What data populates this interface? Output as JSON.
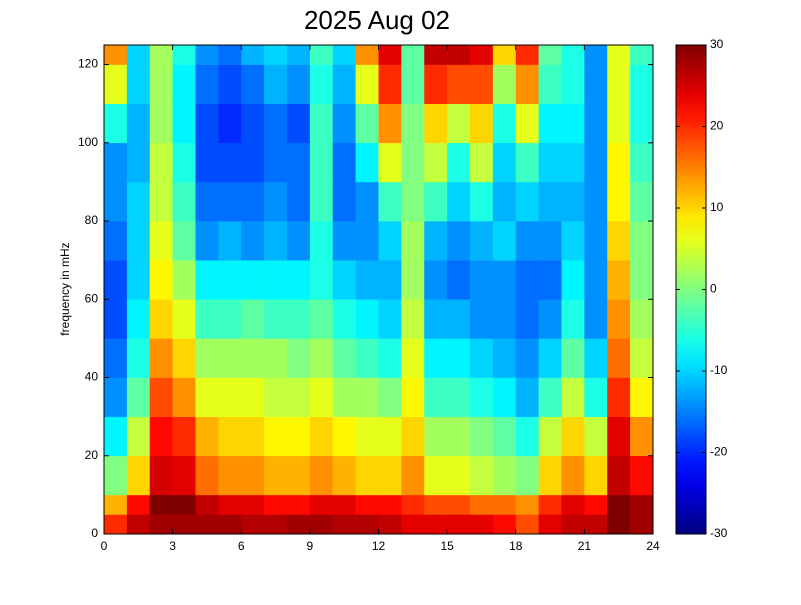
{
  "chart_data": {
    "type": "heatmap",
    "title": "2025 Aug 02",
    "ylabel": "frequency in mHz",
    "colormap": "jet",
    "x_edges": [
      0,
      1,
      2,
      3,
      4,
      5,
      6,
      7,
      8,
      9,
      10,
      11,
      12,
      13,
      14,
      15,
      16,
      17,
      18,
      19,
      20,
      21,
      22,
      23,
      24
    ],
    "y_edges": [
      0,
      5,
      10,
      20,
      30,
      40,
      50,
      60,
      70,
      80,
      90,
      100,
      110,
      120,
      125
    ],
    "values": [
      [
        20,
        26,
        28,
        28,
        28,
        28,
        27,
        27,
        28,
        28,
        27,
        27,
        26,
        24,
        24,
        24,
        24,
        22,
        18,
        24,
        26,
        26,
        30,
        28
      ],
      [
        12,
        22,
        30,
        30,
        26,
        24,
        24,
        22,
        22,
        24,
        24,
        22,
        22,
        20,
        18,
        18,
        16,
        16,
        14,
        20,
        24,
        22,
        30,
        28
      ],
      [
        0,
        10,
        25,
        24,
        16,
        14,
        14,
        12,
        12,
        14,
        12,
        10,
        10,
        14,
        6,
        6,
        4,
        2,
        0,
        10,
        14,
        10,
        26,
        22
      ],
      [
        -8,
        4,
        22,
        20,
        12,
        10,
        10,
        8,
        8,
        10,
        8,
        6,
        6,
        10,
        2,
        2,
        0,
        -2,
        -6,
        4,
        10,
        4,
        24,
        14
      ],
      [
        -14,
        -2,
        18,
        14,
        6,
        6,
        6,
        4,
        4,
        6,
        2,
        2,
        0,
        8,
        -4,
        -4,
        -6,
        -8,
        -12,
        -4,
        4,
        -6,
        20,
        8
      ],
      [
        -16,
        -6,
        14,
        10,
        2,
        2,
        2,
        2,
        0,
        2,
        -2,
        -4,
        -6,
        6,
        -8,
        -8,
        -10,
        -12,
        -14,
        -10,
        -2,
        -10,
        16,
        4
      ],
      [
        -18,
        -8,
        10,
        6,
        -4,
        -4,
        -2,
        -4,
        -4,
        -2,
        -6,
        -8,
        -10,
        4,
        -12,
        -12,
        -14,
        -14,
        -16,
        -14,
        -6,
        -14,
        14,
        2
      ],
      [
        -18,
        -10,
        8,
        2,
        -8,
        -8,
        -8,
        -8,
        -8,
        -6,
        -10,
        -12,
        -12,
        2,
        -14,
        -16,
        -14,
        -14,
        -16,
        -16,
        -8,
        -14,
        12,
        0
      ],
      [
        -16,
        -10,
        6,
        -2,
        -14,
        -12,
        -14,
        -12,
        -14,
        -6,
        -14,
        -14,
        -10,
        2,
        -12,
        -14,
        -12,
        -10,
        -14,
        -14,
        -10,
        -14,
        10,
        0
      ],
      [
        -14,
        -10,
        4,
        -4,
        -16,
        -16,
        -16,
        -14,
        -16,
        -4,
        -16,
        -14,
        -4,
        0,
        -4,
        -10,
        -6,
        -12,
        -10,
        -12,
        -12,
        -14,
        8,
        -2
      ],
      [
        -14,
        -12,
        4,
        -6,
        -18,
        -18,
        -18,
        -16,
        -16,
        -4,
        -16,
        -8,
        6,
        0,
        4,
        -6,
        4,
        -10,
        -4,
        -10,
        -10,
        -14,
        8,
        -4
      ],
      [
        -6,
        -12,
        2,
        -8,
        -18,
        -20,
        -18,
        -16,
        -18,
        -4,
        -14,
        -2,
        14,
        0,
        10,
        4,
        10,
        -6,
        6,
        -8,
        -8,
        -14,
        6,
        -6
      ],
      [
        6,
        -10,
        2,
        -8,
        -16,
        -18,
        -16,
        -12,
        -14,
        -6,
        -12,
        6,
        20,
        -2,
        20,
        18,
        18,
        2,
        14,
        -4,
        -6,
        -14,
        6,
        -6
      ],
      [
        14,
        -10,
        2,
        -6,
        -14,
        -16,
        -12,
        -10,
        -12,
        -4,
        -10,
        14,
        24,
        -2,
        26,
        26,
        24,
        10,
        20,
        -2,
        -6,
        -14,
        6,
        -4
      ]
    ],
    "xlim": [
      0,
      24
    ],
    "xticks": [
      0,
      3,
      6,
      9,
      12,
      15,
      18,
      21,
      24
    ],
    "ylim": [
      0,
      125
    ],
    "yticks": [
      0,
      20,
      40,
      60,
      80,
      100,
      120
    ],
    "clim": [
      -30,
      30
    ],
    "cticks": [
      -30,
      -20,
      -10,
      0,
      10,
      20,
      30
    ]
  }
}
